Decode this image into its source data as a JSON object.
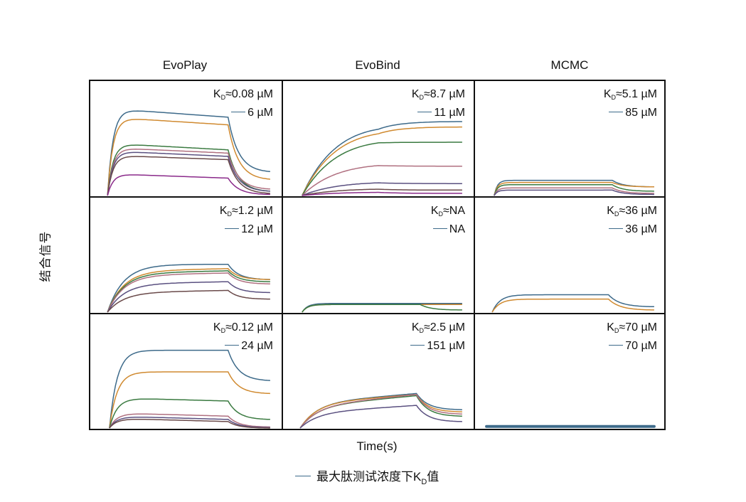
{
  "columns": [
    "EvoPlay",
    "EvoBind",
    "MCMC"
  ],
  "y_axis_label": "结合信号",
  "x_axis_label": "Time(s)",
  "footer_legend": {
    "prefix": "最大肽测试浓度下K",
    "sub": "D",
    "suffix": "值",
    "color": "#3d6a8a"
  },
  "colors": [
    "#3d6a8a",
    "#d08a30",
    "#3a7a40",
    "#b07080",
    "#5a5080",
    "#6a4a4a",
    "#8a2a8a"
  ],
  "chart_data": {
    "type": "line",
    "title": "",
    "xlabel": "Time(s)",
    "ylabel": "结合信号",
    "xlim": [
      0,
      100
    ],
    "ylim": [
      0,
      100
    ],
    "grid": false,
    "legend": "top-right",
    "panels": [
      {
        "row": 0,
        "col": 0,
        "kd_prefix": "K",
        "kd_sub": "D",
        "kd_value": "≈0.08 µM",
        "legend_label": "6 µM",
        "t_on": 9,
        "t_off": 72,
        "rate": 0.35,
        "kdiss": 0.045,
        "curves": [
          {
            "plateau": 80,
            "end": 72,
            "final": 22
          },
          {
            "plateau": 72,
            "end": 65,
            "final": 15
          },
          {
            "plateau": 48,
            "end": 42,
            "final": 4
          },
          {
            "plateau": 44,
            "end": 39,
            "final": 6
          },
          {
            "plateau": 41,
            "end": 36,
            "final": 4
          },
          {
            "plateau": 37,
            "end": 33,
            "final": 2
          },
          {
            "plateau": 20,
            "end": 16,
            "final": 1
          }
        ]
      },
      {
        "row": 0,
        "col": 1,
        "kd_prefix": "K",
        "kd_sub": "D",
        "kd_value": "≈8.7 µM",
        "legend_label": "11 µM",
        "t_on": 10,
        "t_off": 50,
        "rate": 0.045,
        "kdiss": 0.01,
        "curves": [
          {
            "plateau": 85,
            "end": 73,
            "final": 68
          },
          {
            "plateau": 79,
            "end": 68,
            "final": 63
          },
          {
            "plateau": 67,
            "end": 58,
            "final": 49
          },
          {
            "plateau": 38,
            "end": 33,
            "final": 27
          },
          {
            "plateau": 16,
            "end": 14,
            "final": 11
          },
          {
            "plateau": 8,
            "end": 7,
            "final": 5
          },
          {
            "plateau": 4,
            "end": 3.5,
            "final": 2
          }
        ]
      },
      {
        "row": 0,
        "col": 2,
        "kd_prefix": "K",
        "kd_sub": "D",
        "kd_value": "≈5.1 µM",
        "legend_label": "85 µM",
        "t_on": 10,
        "t_off": 72,
        "rate": 0.6,
        "kdiss": 0.06,
        "curves": [
          {
            "plateau": 14,
            "end": 14,
            "final": 8
          },
          {
            "plateau": 12,
            "end": 12,
            "final": 8
          },
          {
            "plateau": 10,
            "end": 10,
            "final": 4
          },
          {
            "plateau": 7,
            "end": 7,
            "final": 2
          },
          {
            "plateau": 5,
            "end": 5,
            "final": 1
          }
        ]
      },
      {
        "row": 1,
        "col": 0,
        "kd_prefix": "K",
        "kd_sub": "D",
        "kd_value": "≈1.2 µM",
        "legend_label": "12 µM",
        "t_on": 9,
        "t_off": 72,
        "rate": 0.12,
        "kdiss": 0.035,
        "curves": [
          {
            "plateau": 44,
            "end": 44,
            "final": 30
          },
          {
            "plateau": 38,
            "end": 40,
            "final": 30
          },
          {
            "plateau": 36,
            "end": 38,
            "final": 28
          },
          {
            "plateau": 34,
            "end": 36,
            "final": 26
          },
          {
            "plateau": 26,
            "end": 28,
            "final": 18
          },
          {
            "plateau": 18,
            "end": 20,
            "final": 12
          }
        ]
      },
      {
        "row": 1,
        "col": 1,
        "kd_prefix": "K",
        "kd_sub": "D",
        "kd_value": "≈NA",
        "legend_label": "NA",
        "t_on": 10,
        "t_off": 72,
        "rate": 0.35,
        "kdiss": 0.01,
        "curves": [
          {
            "plateau": 8,
            "end": 8,
            "final": 8
          },
          {
            "plateau": 7,
            "end": 7,
            "final": 7
          },
          {
            "plateau": 7,
            "end": 7,
            "final": 2
          }
        ]
      },
      {
        "row": 1,
        "col": 2,
        "kd_prefix": "K",
        "kd_sub": "D",
        "kd_value": "≈36 µM",
        "legend_label": "36 µM",
        "t_on": 9,
        "t_off": 70,
        "rate": 0.25,
        "kdiss": 0.06,
        "curves": [
          {
            "plateau": 16,
            "end": 16,
            "final": 5
          },
          {
            "plateau": 12,
            "end": 12,
            "final": 2
          }
        ]
      },
      {
        "row": 2,
        "col": 0,
        "kd_prefix": "K",
        "kd_sub": "D",
        "kd_value": "≈0.12 µM",
        "legend_label": "24 µM",
        "t_on": 10,
        "t_off": 72,
        "rate": 0.25,
        "kdiss": 0.06,
        "curves": [
          {
            "plateau": 72,
            "end": 72,
            "final": 44
          },
          {
            "plateau": 52,
            "end": 52,
            "final": 32
          },
          {
            "plateau": 28,
            "end": 25,
            "final": 8
          },
          {
            "plateau": 14,
            "end": 11,
            "final": 1
          },
          {
            "plateau": 11,
            "end": 8,
            "final": 0.5
          },
          {
            "plateau": 9,
            "end": 6,
            "final": 0
          }
        ]
      },
      {
        "row": 2,
        "col": 1,
        "kd_prefix": "K",
        "kd_sub": "D",
        "kd_value": "≈2.5 µM",
        "legend_label": "151 µM",
        "t_on": 9,
        "t_off": 70,
        "rate": 0.12,
        "kdiss": 0.05,
        "curves": [
          {
            "plateau": 23,
            "end": 32,
            "final": 17
          },
          {
            "plateau": 23,
            "end": 31,
            "final": 15
          },
          {
            "plateau": 20,
            "end": 30,
            "final": 11
          },
          {
            "plateau": 20,
            "end": 31,
            "final": 13
          },
          {
            "plateau": 14,
            "end": 21,
            "final": 6
          }
        ]
      },
      {
        "row": 2,
        "col": 2,
        "kd_prefix": "K",
        "kd_sub": "D",
        "kd_value": "≈70 µM",
        "legend_label": "70 µM",
        "t_on": 6,
        "t_off": 94,
        "rate": 5,
        "kdiss": 0,
        "flat": true,
        "curves": [
          {
            "plateau": 1.5,
            "end": 1.5,
            "final": 1.5
          }
        ]
      }
    ]
  }
}
